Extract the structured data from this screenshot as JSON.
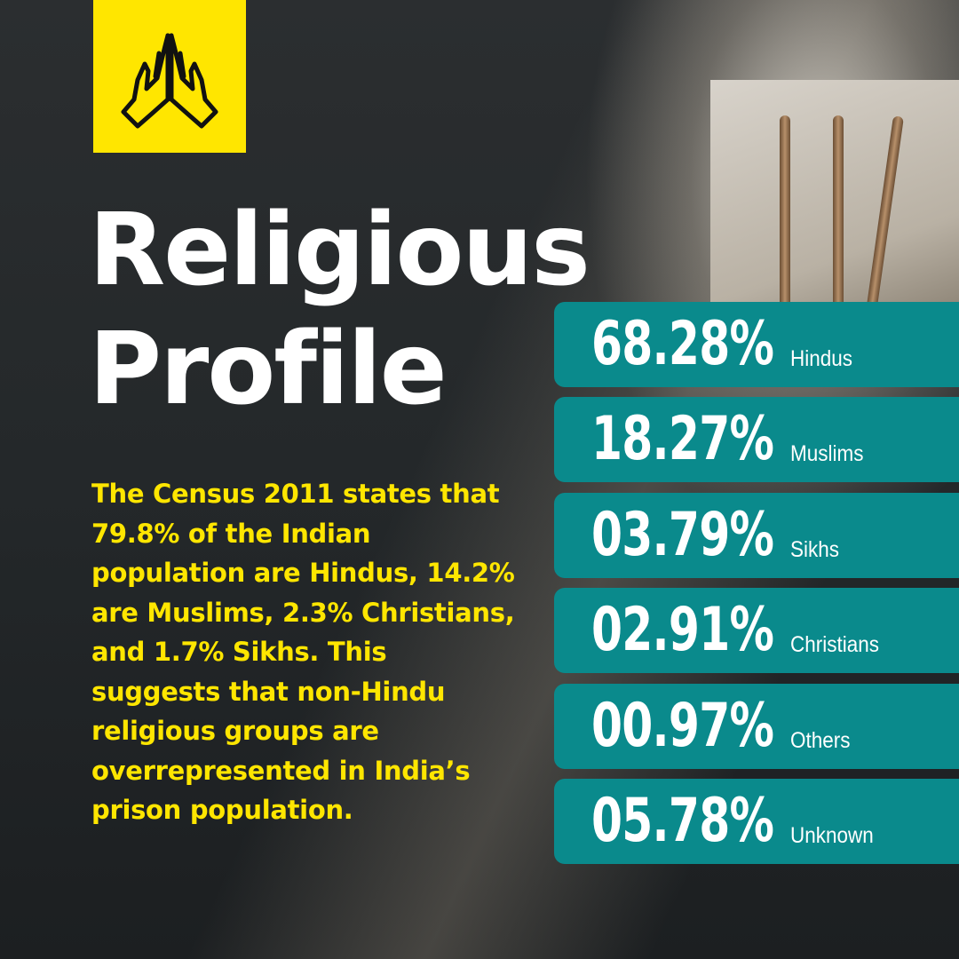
{
  "title": "Religious Profile",
  "body": "The Census 2011 states that 79.8% of the Indian population are Hindus, 14.2% are Muslims, 2.3% Christians, and 1.7% Sikhs. This suggests that non-Hindu religious groups are overrepresented in India’s prison population.",
  "stats": [
    {
      "value": "68.28%",
      "label": "Hindus"
    },
    {
      "value": "18.27%",
      "label": "Muslims"
    },
    {
      "value": "03.79%",
      "label": "Sikhs"
    },
    {
      "value": "02.91%",
      "label": "Christians"
    },
    {
      "value": "00.97%",
      "label": "Others"
    },
    {
      "value": "05.78%",
      "label": "Unknown"
    }
  ]
}
